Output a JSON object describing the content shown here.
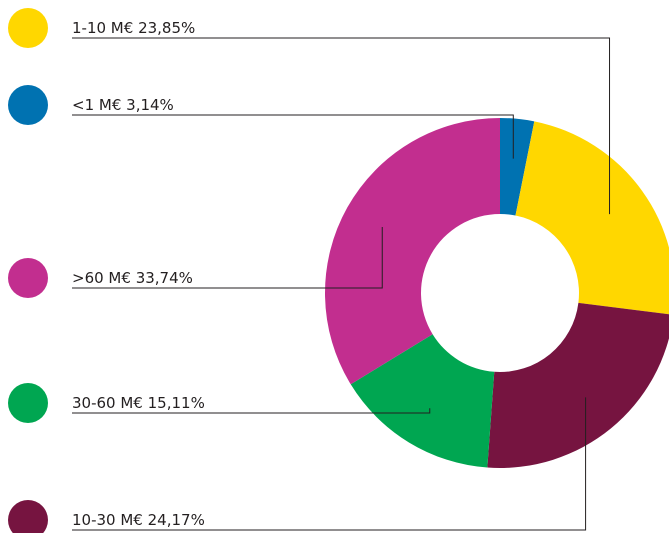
{
  "chart_data": {
    "type": "donut",
    "categories": [
      "<1 M€",
      "1-10 M€",
      "10-30 M€",
      "30-60 M€",
      ">60 M€"
    ],
    "values": [
      3.14,
      23.85,
      24.17,
      15.11,
      33.74
    ],
    "value_labels": [
      "3,14%",
      "23,85%",
      "24,17%",
      "15,11%",
      "33,74%"
    ],
    "colors": [
      "#0072b1",
      "#ffd700",
      "#761440",
      "#00a651",
      "#c22e8f"
    ]
  }
}
